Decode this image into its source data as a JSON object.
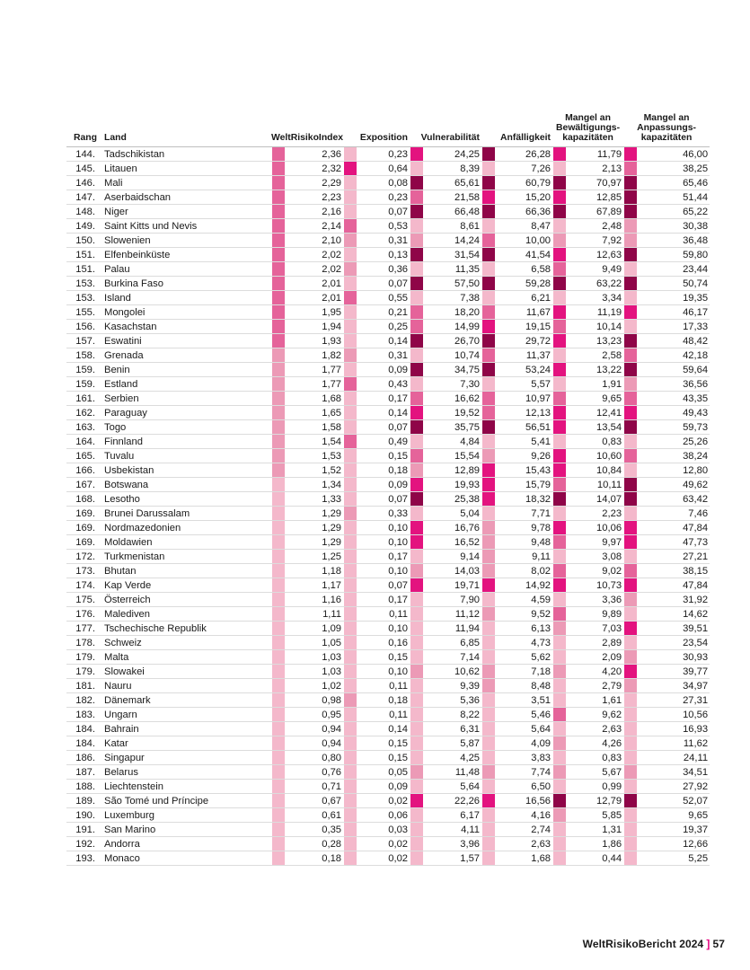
{
  "header": {
    "rank": "Rang",
    "country": "Land",
    "wri": "WeltRisikoIndex",
    "exposure": "Exposition",
    "vulnerability": "Vulnerabilität",
    "susceptibility": "Anfälligkeit",
    "coping": [
      "Mangel an",
      "Bewältigungs-",
      "kapazitäten"
    ],
    "adaptive": [
      "Mangel an",
      "Anpassungs-",
      "kapazitäten"
    ]
  },
  "colors": {
    "very_low": "#f4b8cb",
    "low": "#ec9ab6",
    "medium": "#e5639a",
    "high": "#e3137f",
    "very_high": "#8f0548"
  },
  "rows": [
    {
      "rank": "144.",
      "country": "Tadschikistan",
      "wri": "2,36",
      "wri_c": "medium",
      "exp": "0,23",
      "exp_c": "very_low",
      "vul": "24,25",
      "vul_c": "high",
      "anf": "26,28",
      "anf_c": "very_high",
      "bew": "11,79",
      "bew_c": "high",
      "anp": "46,00",
      "anp_c": "high"
    },
    {
      "rank": "145.",
      "country": "Litauen",
      "wri": "2,32",
      "wri_c": "medium",
      "exp": "0,64",
      "exp_c": "high",
      "vul": "8,39",
      "vul_c": "very_low",
      "anf": "7,26",
      "anf_c": "very_low",
      "bew": "2,13",
      "bew_c": "very_low",
      "anp": "38,25",
      "anp_c": "medium"
    },
    {
      "rank": "146.",
      "country": "Mali",
      "wri": "2,29",
      "wri_c": "medium",
      "exp": "0,08",
      "exp_c": "very_low",
      "vul": "65,61",
      "vul_c": "very_high",
      "anf": "60,79",
      "anf_c": "very_high",
      "bew": "70,97",
      "bew_c": "very_high",
      "anp": "65,46",
      "anp_c": "very_high"
    },
    {
      "rank": "147.",
      "country": "Aserbaidschan",
      "wri": "2,23",
      "wri_c": "medium",
      "exp": "0,23",
      "exp_c": "very_low",
      "vul": "21,58",
      "vul_c": "medium",
      "anf": "15,20",
      "anf_c": "high",
      "bew": "12,85",
      "bew_c": "high",
      "anp": "51,44",
      "anp_c": "very_high"
    },
    {
      "rank": "148.",
      "country": "Niger",
      "wri": "2,16",
      "wri_c": "medium",
      "exp": "0,07",
      "exp_c": "very_low",
      "vul": "66,48",
      "vul_c": "very_high",
      "anf": "66,36",
      "anf_c": "very_high",
      "bew": "67,89",
      "bew_c": "very_high",
      "anp": "65,22",
      "anp_c": "very_high"
    },
    {
      "rank": "149.",
      "country": "Saint Kitts und Nevis",
      "wri": "2,14",
      "wri_c": "medium",
      "exp": "0,53",
      "exp_c": "medium",
      "vul": "8,61",
      "vul_c": "very_low",
      "anf": "8,47",
      "anf_c": "very_low",
      "bew": "2,48",
      "bew_c": "very_low",
      "anp": "30,38",
      "anp_c": "low"
    },
    {
      "rank": "150.",
      "country": "Slowenien",
      "wri": "2,10",
      "wri_c": "medium",
      "exp": "0,31",
      "exp_c": "low",
      "vul": "14,24",
      "vul_c": "low",
      "anf": "10,00",
      "anf_c": "medium",
      "bew": "7,92",
      "bew_c": "low",
      "anp": "36,48",
      "anp_c": "low"
    },
    {
      "rank": "151.",
      "country": "Elfenbeinküste",
      "wri": "2,02",
      "wri_c": "medium",
      "exp": "0,13",
      "exp_c": "very_low",
      "vul": "31,54",
      "vul_c": "very_high",
      "anf": "41,54",
      "anf_c": "very_high",
      "bew": "12,63",
      "bew_c": "high",
      "anp": "59,80",
      "anp_c": "very_high"
    },
    {
      "rank": "151.",
      "country": "Palau",
      "wri": "2,02",
      "wri_c": "medium",
      "exp": "0,36",
      "exp_c": "low",
      "vul": "11,35",
      "vul_c": "very_low",
      "anf": "6,58",
      "anf_c": "very_low",
      "bew": "9,49",
      "bew_c": "medium",
      "anp": "23,44",
      "anp_c": "very_low"
    },
    {
      "rank": "153.",
      "country": "Burkina Faso",
      "wri": "2,01",
      "wri_c": "medium",
      "exp": "0,07",
      "exp_c": "very_low",
      "vul": "57,50",
      "vul_c": "very_high",
      "anf": "59,28",
      "anf_c": "very_high",
      "bew": "63,22",
      "bew_c": "very_high",
      "anp": "50,74",
      "anp_c": "very_high"
    },
    {
      "rank": "153.",
      "country": "Island",
      "wri": "2,01",
      "wri_c": "medium",
      "exp": "0,55",
      "exp_c": "medium",
      "vul": "7,38",
      "vul_c": "very_low",
      "anf": "6,21",
      "anf_c": "very_low",
      "bew": "3,34",
      "bew_c": "very_low",
      "anp": "19,35",
      "anp_c": "very_low"
    },
    {
      "rank": "155.",
      "country": "Mongolei",
      "wri": "1,95",
      "wri_c": "medium",
      "exp": "0,21",
      "exp_c": "very_low",
      "vul": "18,20",
      "vul_c": "medium",
      "anf": "11,67",
      "anf_c": "medium",
      "bew": "11,19",
      "bew_c": "high",
      "anp": "46,17",
      "anp_c": "high"
    },
    {
      "rank": "156.",
      "country": "Kasachstan",
      "wri": "1,94",
      "wri_c": "medium",
      "exp": "0,25",
      "exp_c": "very_low",
      "vul": "14,99",
      "vul_c": "medium",
      "anf": "19,15",
      "anf_c": "high",
      "bew": "10,14",
      "bew_c": "medium",
      "anp": "17,33",
      "anp_c": "very_low"
    },
    {
      "rank": "157.",
      "country": "Eswatini",
      "wri": "1,93",
      "wri_c": "medium",
      "exp": "0,14",
      "exp_c": "very_low",
      "vul": "26,70",
      "vul_c": "very_high",
      "anf": "29,72",
      "anf_c": "very_high",
      "bew": "13,23",
      "bew_c": "high",
      "anp": "48,42",
      "anp_c": "very_high"
    },
    {
      "rank": "158.",
      "country": "Grenada",
      "wri": "1,82",
      "wri_c": "low",
      "exp": "0,31",
      "exp_c": "low",
      "vul": "10,74",
      "vul_c": "very_low",
      "anf": "11,37",
      "anf_c": "medium",
      "bew": "2,58",
      "bew_c": "very_low",
      "anp": "42,18",
      "anp_c": "medium"
    },
    {
      "rank": "159.",
      "country": "Benin",
      "wri": "1,77",
      "wri_c": "low",
      "exp": "0,09",
      "exp_c": "very_low",
      "vul": "34,75",
      "vul_c": "very_high",
      "anf": "53,24",
      "anf_c": "very_high",
      "bew": "13,22",
      "bew_c": "high",
      "anp": "59,64",
      "anp_c": "very_high"
    },
    {
      "rank": "159.",
      "country": "Estland",
      "wri": "1,77",
      "wri_c": "low",
      "exp": "0,43",
      "exp_c": "medium",
      "vul": "7,30",
      "vul_c": "very_low",
      "anf": "5,57",
      "anf_c": "very_low",
      "bew": "1,91",
      "bew_c": "very_low",
      "anp": "36,56",
      "anp_c": "low"
    },
    {
      "rank": "161.",
      "country": "Serbien",
      "wri": "1,68",
      "wri_c": "low",
      "exp": "0,17",
      "exp_c": "very_low",
      "vul": "16,62",
      "vul_c": "medium",
      "anf": "10,97",
      "anf_c": "medium",
      "bew": "9,65",
      "bew_c": "medium",
      "anp": "43,35",
      "anp_c": "medium"
    },
    {
      "rank": "162.",
      "country": "Paraguay",
      "wri": "1,65",
      "wri_c": "low",
      "exp": "0,14",
      "exp_c": "very_low",
      "vul": "19,52",
      "vul_c": "high",
      "anf": "12,13",
      "anf_c": "medium",
      "bew": "12,41",
      "bew_c": "high",
      "anp": "49,43",
      "anp_c": "high"
    },
    {
      "rank": "163.",
      "country": "Togo",
      "wri": "1,58",
      "wri_c": "low",
      "exp": "0,07",
      "exp_c": "very_low",
      "vul": "35,75",
      "vul_c": "very_high",
      "anf": "56,51",
      "anf_c": "very_high",
      "bew": "13,54",
      "bew_c": "high",
      "anp": "59,73",
      "anp_c": "very_high"
    },
    {
      "rank": "164.",
      "country": "Finnland",
      "wri": "1,54",
      "wri_c": "low",
      "exp": "0,49",
      "exp_c": "medium",
      "vul": "4,84",
      "vul_c": "very_low",
      "anf": "5,41",
      "anf_c": "very_low",
      "bew": "0,83",
      "bew_c": "very_low",
      "anp": "25,26",
      "anp_c": "very_low"
    },
    {
      "rank": "165.",
      "country": "Tuvalu",
      "wri": "1,53",
      "wri_c": "low",
      "exp": "0,15",
      "exp_c": "very_low",
      "vul": "15,54",
      "vul_c": "medium",
      "anf": "9,26",
      "anf_c": "low",
      "bew": "10,60",
      "bew_c": "high",
      "anp": "38,24",
      "anp_c": "medium"
    },
    {
      "rank": "166.",
      "country": "Usbekistan",
      "wri": "1,52",
      "wri_c": "low",
      "exp": "0,18",
      "exp_c": "very_low",
      "vul": "12,89",
      "vul_c": "low",
      "anf": "15,43",
      "anf_c": "high",
      "bew": "10,84",
      "bew_c": "high",
      "anp": "12,80",
      "anp_c": "very_low"
    },
    {
      "rank": "167.",
      "country": "Botswana",
      "wri": "1,34",
      "wri_c": "very_low",
      "exp": "0,09",
      "exp_c": "very_low",
      "vul": "19,93",
      "vul_c": "high",
      "anf": "15,79",
      "anf_c": "high",
      "bew": "10,11",
      "bew_c": "medium",
      "anp": "49,62",
      "anp_c": "very_high"
    },
    {
      "rank": "168.",
      "country": "Lesotho",
      "wri": "1,33",
      "wri_c": "very_low",
      "exp": "0,07",
      "exp_c": "very_low",
      "vul": "25,38",
      "vul_c": "very_high",
      "anf": "18,32",
      "anf_c": "high",
      "bew": "14,07",
      "bew_c": "very_high",
      "anp": "63,42",
      "anp_c": "very_high"
    },
    {
      "rank": "169.",
      "country": "Brunei Darussalam",
      "wri": "1,29",
      "wri_c": "very_low",
      "exp": "0,33",
      "exp_c": "low",
      "vul": "5,04",
      "vul_c": "very_low",
      "anf": "7,71",
      "anf_c": "very_low",
      "bew": "2,23",
      "bew_c": "very_low",
      "anp": "7,46",
      "anp_c": "very_low"
    },
    {
      "rank": "169.",
      "country": "Nordmazedonien",
      "wri": "1,29",
      "wri_c": "very_low",
      "exp": "0,10",
      "exp_c": "very_low",
      "vul": "16,76",
      "vul_c": "high",
      "anf": "9,78",
      "anf_c": "low",
      "bew": "10,06",
      "bew_c": "high",
      "anp": "47,84",
      "anp_c": "high"
    },
    {
      "rank": "169.",
      "country": "Moldawien",
      "wri": "1,29",
      "wri_c": "very_low",
      "exp": "0,10",
      "exp_c": "very_low",
      "vul": "16,52",
      "vul_c": "high",
      "anf": "9,48",
      "anf_c": "low",
      "bew": "9,97",
      "bew_c": "medium",
      "anp": "47,73",
      "anp_c": "high"
    },
    {
      "rank": "172.",
      "country": "Turkmenistan",
      "wri": "1,25",
      "wri_c": "very_low",
      "exp": "0,17",
      "exp_c": "very_low",
      "vul": "9,14",
      "vul_c": "very_low",
      "anf": "9,11",
      "anf_c": "low",
      "bew": "3,08",
      "bew_c": "very_low",
      "anp": "27,21",
      "anp_c": "very_low"
    },
    {
      "rank": "173.",
      "country": "Bhutan",
      "wri": "1,18",
      "wri_c": "very_low",
      "exp": "0,10",
      "exp_c": "very_low",
      "vul": "14,03",
      "vul_c": "low",
      "anf": "8,02",
      "anf_c": "low",
      "bew": "9,02",
      "bew_c": "medium",
      "anp": "38,15",
      "anp_c": "medium"
    },
    {
      "rank": "174.",
      "country": "Kap Verde",
      "wri": "1,17",
      "wri_c": "very_low",
      "exp": "0,07",
      "exp_c": "very_low",
      "vul": "19,71",
      "vul_c": "high",
      "anf": "14,92",
      "anf_c": "high",
      "bew": "10,73",
      "bew_c": "high",
      "anp": "47,84",
      "anp_c": "high"
    },
    {
      "rank": "175.",
      "country": "Österreich",
      "wri": "1,16",
      "wri_c": "very_low",
      "exp": "0,17",
      "exp_c": "very_low",
      "vul": "7,90",
      "vul_c": "very_low",
      "anf": "4,59",
      "anf_c": "very_low",
      "bew": "3,36",
      "bew_c": "very_low",
      "anp": "31,92",
      "anp_c": "low"
    },
    {
      "rank": "176.",
      "country": "Malediven",
      "wri": "1,11",
      "wri_c": "very_low",
      "exp": "0,11",
      "exp_c": "very_low",
      "vul": "11,12",
      "vul_c": "very_low",
      "anf": "9,52",
      "anf_c": "low",
      "bew": "9,89",
      "bew_c": "medium",
      "anp": "14,62",
      "anp_c": "very_low"
    },
    {
      "rank": "177.",
      "country": "Tschechische Republik",
      "wri": "1,09",
      "wri_c": "very_low",
      "exp": "0,10",
      "exp_c": "very_low",
      "vul": "11,94",
      "vul_c": "very_low",
      "anf": "6,13",
      "anf_c": "very_low",
      "bew": "7,03",
      "bew_c": "low",
      "anp": "39,51",
      "anp_c": "high"
    },
    {
      "rank": "178.",
      "country": "Schweiz",
      "wri": "1,05",
      "wri_c": "very_low",
      "exp": "0,16",
      "exp_c": "very_low",
      "vul": "6,85",
      "vul_c": "very_low",
      "anf": "4,73",
      "anf_c": "very_low",
      "bew": "2,89",
      "bew_c": "very_low",
      "anp": "23,54",
      "anp_c": "very_low"
    },
    {
      "rank": "179.",
      "country": "Malta",
      "wri": "1,03",
      "wri_c": "very_low",
      "exp": "0,15",
      "exp_c": "very_low",
      "vul": "7,14",
      "vul_c": "very_low",
      "anf": "5,62",
      "anf_c": "very_low",
      "bew": "2,09",
      "bew_c": "very_low",
      "anp": "30,93",
      "anp_c": "low"
    },
    {
      "rank": "179.",
      "country": "Slowakei",
      "wri": "1,03",
      "wri_c": "very_low",
      "exp": "0,10",
      "exp_c": "very_low",
      "vul": "10,62",
      "vul_c": "low",
      "anf": "7,18",
      "anf_c": "low",
      "bew": "4,20",
      "bew_c": "low",
      "anp": "39,77",
      "anp_c": "high"
    },
    {
      "rank": "181.",
      "country": "Nauru",
      "wri": "1,02",
      "wri_c": "very_low",
      "exp": "0,11",
      "exp_c": "very_low",
      "vul": "9,39",
      "vul_c": "very_low",
      "anf": "8,48",
      "anf_c": "low",
      "bew": "2,79",
      "bew_c": "very_low",
      "anp": "34,97",
      "anp_c": "low"
    },
    {
      "rank": "182.",
      "country": "Dänemark",
      "wri": "0,98",
      "wri_c": "very_low",
      "exp": "0,18",
      "exp_c": "low",
      "vul": "5,36",
      "vul_c": "very_low",
      "anf": "3,51",
      "anf_c": "very_low",
      "bew": "1,61",
      "bew_c": "very_low",
      "anp": "27,31",
      "anp_c": "very_low"
    },
    {
      "rank": "183.",
      "country": "Ungarn",
      "wri": "0,95",
      "wri_c": "very_low",
      "exp": "0,11",
      "exp_c": "very_low",
      "vul": "8,22",
      "vul_c": "very_low",
      "anf": "5,46",
      "anf_c": "very_low",
      "bew": "9,62",
      "bew_c": "medium",
      "anp": "10,56",
      "anp_c": "very_low"
    },
    {
      "rank": "184.",
      "country": "Bahrain",
      "wri": "0,94",
      "wri_c": "very_low",
      "exp": "0,14",
      "exp_c": "very_low",
      "vul": "6,31",
      "vul_c": "very_low",
      "anf": "5,64",
      "anf_c": "very_low",
      "bew": "2,63",
      "bew_c": "very_low",
      "anp": "16,93",
      "anp_c": "very_low"
    },
    {
      "rank": "184.",
      "country": "Katar",
      "wri": "0,94",
      "wri_c": "very_low",
      "exp": "0,15",
      "exp_c": "very_low",
      "vul": "5,87",
      "vul_c": "very_low",
      "anf": "4,09",
      "anf_c": "very_low",
      "bew": "4,26",
      "bew_c": "low",
      "anp": "11,62",
      "anp_c": "very_low"
    },
    {
      "rank": "186.",
      "country": "Singapur",
      "wri": "0,80",
      "wri_c": "very_low",
      "exp": "0,15",
      "exp_c": "very_low",
      "vul": "4,25",
      "vul_c": "very_low",
      "anf": "3,83",
      "anf_c": "very_low",
      "bew": "0,83",
      "bew_c": "very_low",
      "anp": "24,11",
      "anp_c": "very_low"
    },
    {
      "rank": "187.",
      "country": "Belarus",
      "wri": "0,76",
      "wri_c": "very_low",
      "exp": "0,05",
      "exp_c": "very_low",
      "vul": "11,48",
      "vul_c": "low",
      "anf": "7,74",
      "anf_c": "low",
      "bew": "5,67",
      "bew_c": "low",
      "anp": "34,51",
      "anp_c": "low"
    },
    {
      "rank": "188.",
      "country": "Liechtenstein",
      "wri": "0,71",
      "wri_c": "very_low",
      "exp": "0,09",
      "exp_c": "very_low",
      "vul": "5,64",
      "vul_c": "very_low",
      "anf": "6,50",
      "anf_c": "very_low",
      "bew": "0,99",
      "bew_c": "very_low",
      "anp": "27,92",
      "anp_c": "very_low"
    },
    {
      "rank": "189.",
      "country": "São Tomé und Príncipe",
      "wri": "0,67",
      "wri_c": "very_low",
      "exp": "0,02",
      "exp_c": "very_low",
      "vul": "22,26",
      "vul_c": "high",
      "anf": "16,56",
      "anf_c": "high",
      "bew": "12,79",
      "bew_c": "very_high",
      "anp": "52,07",
      "anp_c": "very_high"
    },
    {
      "rank": "190.",
      "country": "Luxemburg",
      "wri": "0,61",
      "wri_c": "very_low",
      "exp": "0,06",
      "exp_c": "very_low",
      "vul": "6,17",
      "vul_c": "very_low",
      "anf": "4,16",
      "anf_c": "very_low",
      "bew": "5,85",
      "bew_c": "low",
      "anp": "9,65",
      "anp_c": "very_low"
    },
    {
      "rank": "191.",
      "country": "San Marino",
      "wri": "0,35",
      "wri_c": "very_low",
      "exp": "0,03",
      "exp_c": "very_low",
      "vul": "4,11",
      "vul_c": "very_low",
      "anf": "2,74",
      "anf_c": "very_low",
      "bew": "1,31",
      "bew_c": "very_low",
      "anp": "19,37",
      "anp_c": "very_low"
    },
    {
      "rank": "192.",
      "country": "Andorra",
      "wri": "0,28",
      "wri_c": "very_low",
      "exp": "0,02",
      "exp_c": "very_low",
      "vul": "3,96",
      "vul_c": "very_low",
      "anf": "2,63",
      "anf_c": "very_low",
      "bew": "1,86",
      "bew_c": "very_low",
      "anp": "12,66",
      "anp_c": "very_low"
    },
    {
      "rank": "193.",
      "country": "Monaco",
      "wri": "0,18",
      "wri_c": "very_low",
      "exp": "0,02",
      "exp_c": "very_low",
      "vul": "1,57",
      "vul_c": "very_low",
      "anf": "1,68",
      "anf_c": "very_low",
      "bew": "0,44",
      "bew_c": "very_low",
      "anp": "5,25",
      "anp_c": "very_low"
    }
  ],
  "footer": {
    "title": "WeltRisikoBericht 2024",
    "bracket": "]",
    "page": "57"
  }
}
